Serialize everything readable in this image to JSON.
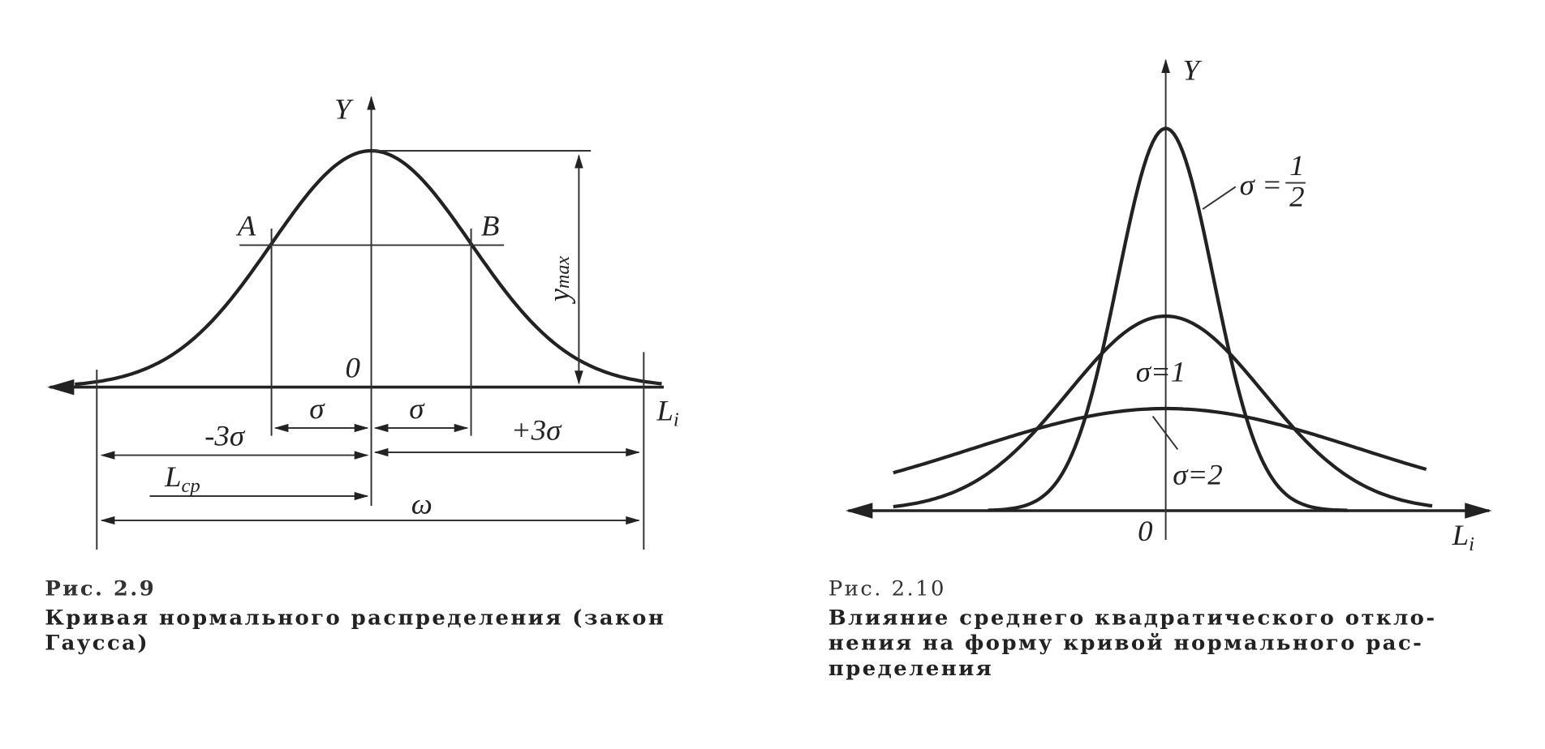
{
  "figure_left": {
    "labels": {
      "y_axis": "Y",
      "point_a": "A",
      "point_b": "B",
      "y_max": {
        "main": "y",
        "sub": "max"
      },
      "origin": "0",
      "sigma_left": "σ",
      "sigma_right": "σ",
      "minus_three_sigma": "-3σ",
      "plus_three_sigma": "+3σ",
      "x_axis": {
        "main": "L",
        "sub": "i"
      },
      "l_mean": {
        "main": "L",
        "sub": "ср"
      },
      "omega": "ω"
    },
    "caption": {
      "number": "Рис. 2.9",
      "lines": [
        "Кривая нормального распределения (закон",
        "Гаусса)"
      ]
    }
  },
  "figure_right": {
    "labels": {
      "y_axis": "Y",
      "sigma_half": {
        "prefix": "σ =",
        "numerator": "1",
        "denominator": "2"
      },
      "sigma_one": "σ=1",
      "sigma_two": "σ=2",
      "origin": "0",
      "x_axis": {
        "main": "L",
        "sub": "i"
      }
    },
    "caption": {
      "number": "Рис. 2.10",
      "lines": [
        "Влияние среднего квадратического откло-",
        "нения на форму кривой нормального рас-",
        "пределения"
      ]
    }
  }
}
